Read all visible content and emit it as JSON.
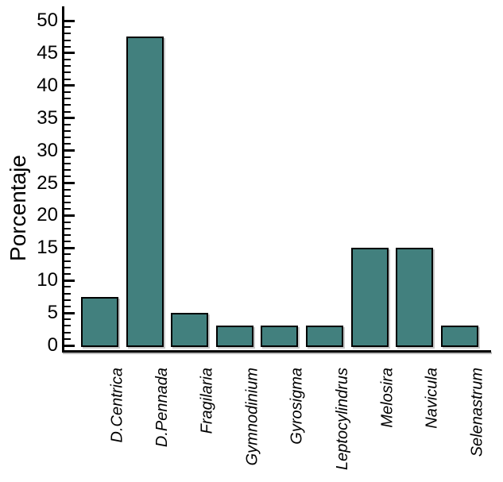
{
  "chart_data": {
    "type": "bar",
    "title": "",
    "xlabel": "",
    "ylabel": "Porcentaje",
    "categories": [
      "D.Centrica",
      "D.Pennada",
      "Fragilaria",
      "Gymnodinium",
      "Gyrosigma",
      "Leptocylindrus",
      "Melosira",
      "Navicula",
      "Selenastrum"
    ],
    "values": [
      7.5,
      47.5,
      5,
      3,
      3,
      3,
      15,
      15,
      3
    ],
    "ylim": [
      0,
      50
    ],
    "y_major_tick_step": 5,
    "y_minor_tick_step": 1,
    "y_tick_labels": [
      "0",
      "5",
      "10",
      "15",
      "20",
      "25",
      "30",
      "35",
      "40",
      "45",
      "50"
    ],
    "grid": false,
    "legend_position": "none",
    "bar_color": "#42807E",
    "bar_border_color": "#000000",
    "axis_color": "#000000",
    "text_color": "#000000",
    "background_color": "#ffffff",
    "x_tick_label_style": "italic-rotated-90"
  }
}
